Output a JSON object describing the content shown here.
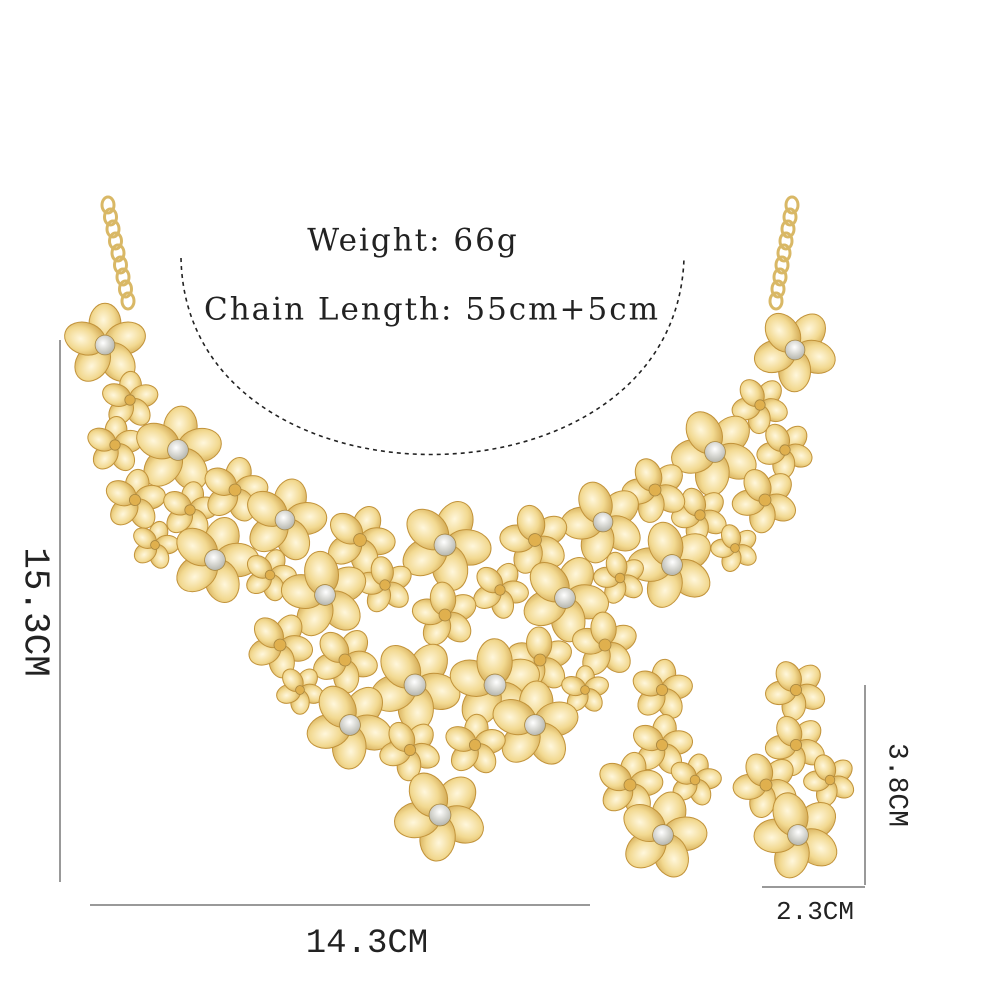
{
  "annotations": {
    "weight": "Weight: 66g",
    "chain_length": "Chain Length: 55cm+5cm",
    "necklace_height": "15.3CM",
    "necklace_width": "14.3CM",
    "earring_height": "3.8CM",
    "earring_width": "2.3CM"
  }
}
